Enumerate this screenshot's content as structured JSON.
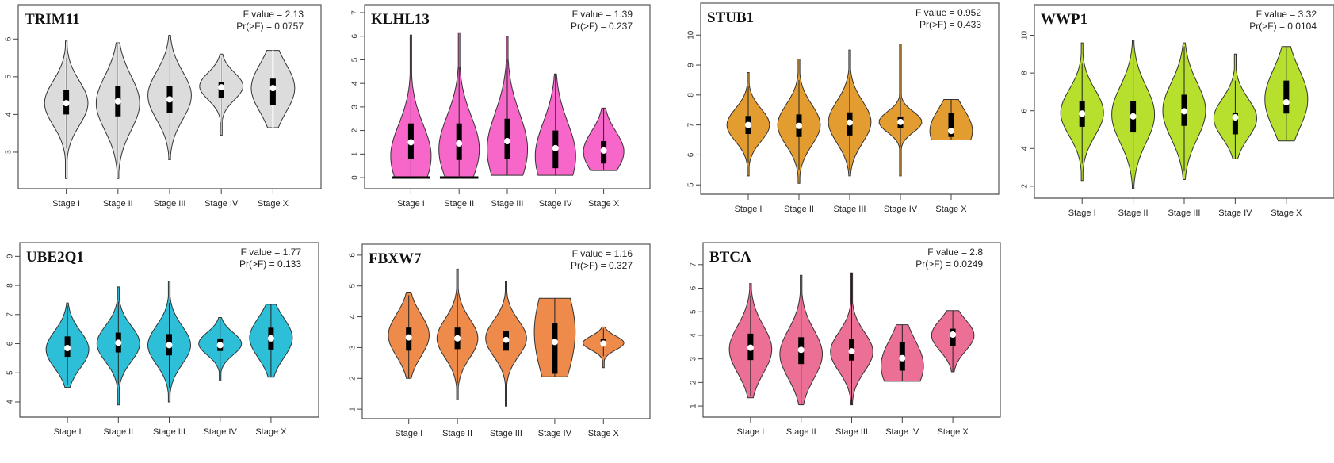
{
  "chart_data": [
    {
      "type": "violin",
      "title": "TRIM11",
      "stat_f": "F value = 2.13",
      "stat_p": "Pr(>F) = 0.0757",
      "color": "#dcdcdc",
      "categories": [
        "Stage I",
        "Stage II",
        "Stage III",
        "Stage IV",
        "Stage X"
      ],
      "ylim": [
        2.2,
        6.7
      ],
      "yticks": [
        3,
        4,
        5,
        6
      ],
      "series": [
        {
          "min": 2.3,
          "max": 5.95,
          "q1": 4.0,
          "median": 4.3,
          "q3": 4.65,
          "mode": 4.3,
          "lo_w": 3.1,
          "hi_w": 5.5
        },
        {
          "min": 2.3,
          "max": 5.9,
          "q1": 3.95,
          "median": 4.35,
          "q3": 4.75,
          "mode": 4.3,
          "lo_w": 2.7,
          "hi_w": 5.9
        },
        {
          "min": 2.8,
          "max": 6.1,
          "q1": 4.05,
          "median": 4.4,
          "q3": 4.75,
          "mode": 4.5,
          "lo_w": 2.9,
          "hi_w": 5.8
        },
        {
          "min": 3.45,
          "max": 5.6,
          "q1": 4.45,
          "median": 4.72,
          "q3": 4.85,
          "mode": 4.75,
          "lo_w": 3.8,
          "hi_w": 5.5
        },
        {
          "min": 3.65,
          "max": 5.7,
          "q1": 4.25,
          "median": 4.7,
          "q3": 4.95,
          "mode": 4.7,
          "lo_w": 3.65,
          "hi_w": 5.7
        }
      ]
    },
    {
      "type": "violin",
      "title": "KLHL13",
      "stat_f": "F value = 1.39",
      "stat_p": "Pr(>F) = 0.237",
      "color": "#f766c9",
      "categories": [
        "Stage I",
        "Stage II",
        "Stage III",
        "Stage IV",
        "Stage X"
      ],
      "ylim": [
        -0.2,
        7.0
      ],
      "yticks": [
        0,
        1,
        2,
        3,
        4,
        5,
        6,
        7
      ],
      "series": [
        {
          "min": 0.0,
          "max": 6.05,
          "q1": 0.8,
          "median": 1.5,
          "q3": 2.3,
          "mode": 0.9,
          "lo_w": 0.0,
          "hi_w": 4.3,
          "zero_bar": true
        },
        {
          "min": 0.0,
          "max": 6.15,
          "q1": 0.75,
          "median": 1.45,
          "q3": 2.3,
          "mode": 1.2,
          "lo_w": 0.0,
          "hi_w": 4.7,
          "zero_bar": true
        },
        {
          "min": 0.1,
          "max": 6.0,
          "q1": 0.8,
          "median": 1.55,
          "q3": 2.5,
          "mode": 1.2,
          "lo_w": 0.1,
          "hi_w": 5.0
        },
        {
          "min": 0.1,
          "max": 4.4,
          "q1": 0.4,
          "median": 1.25,
          "q3": 2.0,
          "mode": 0.9,
          "lo_w": 0.1,
          "hi_w": 4.4
        },
        {
          "min": 0.3,
          "max": 2.95,
          "q1": 0.6,
          "median": 1.15,
          "q3": 1.55,
          "mode": 1.1,
          "lo_w": 0.3,
          "hi_w": 2.95
        }
      ]
    },
    {
      "type": "violin",
      "title": "STUB1",
      "stat_f": "F value = 0.952",
      "stat_p": "Pr(>F) = 0.433",
      "color": "#e39c30",
      "categories": [
        "Stage I",
        "Stage II",
        "Stage III",
        "Stage IV",
        "Stage X"
      ],
      "ylim": [
        4.9,
        10.8
      ],
      "yticks": [
        5,
        6,
        7,
        8,
        9,
        10
      ],
      "series": [
        {
          "min": 5.3,
          "max": 8.75,
          "q1": 6.7,
          "median": 7.0,
          "q3": 7.3,
          "mode": 7.0,
          "lo_w": 5.75,
          "hi_w": 8.3
        },
        {
          "min": 5.05,
          "max": 9.2,
          "q1": 6.6,
          "median": 6.97,
          "q3": 7.35,
          "mode": 7.0,
          "lo_w": 5.5,
          "hi_w": 8.5
        },
        {
          "min": 5.3,
          "max": 9.5,
          "q1": 6.65,
          "median": 7.08,
          "q3": 7.42,
          "mode": 7.1,
          "lo_w": 5.5,
          "hi_w": 8.6
        },
        {
          "min": 5.3,
          "max": 9.7,
          "q1": 6.9,
          "median": 7.1,
          "q3": 7.28,
          "mode": 7.1,
          "lo_w": 6.25,
          "hi_w": 7.9
        },
        {
          "min": 6.5,
          "max": 7.85,
          "q1": 6.6,
          "median": 6.8,
          "q3": 7.4,
          "mode": 6.8,
          "lo_w": 6.5,
          "hi_w": 7.85
        }
      ]
    },
    {
      "type": "violin",
      "title": "WWP1",
      "stat_f": "F value = 3.32",
      "stat_p": "Pr(>F) = 0.0104",
      "color": "#b6e02d",
      "categories": [
        "Stage I",
        "Stage II",
        "Stage III",
        "Stage IV",
        "Stage X"
      ],
      "ylim": [
        1.7,
        11.2
      ],
      "yticks": [
        2,
        4,
        6,
        8,
        10
      ],
      "series": [
        {
          "min": 2.3,
          "max": 9.6,
          "q1": 5.15,
          "median": 5.85,
          "q3": 6.5,
          "mode": 5.9,
          "lo_w": 3.2,
          "hi_w": 8.5
        },
        {
          "min": 1.85,
          "max": 9.75,
          "q1": 4.85,
          "median": 5.7,
          "q3": 6.5,
          "mode": 5.8,
          "lo_w": 2.3,
          "hi_w": 9.2
        },
        {
          "min": 2.35,
          "max": 9.6,
          "q1": 5.2,
          "median": 5.97,
          "q3": 6.85,
          "mode": 6.0,
          "lo_w": 2.8,
          "hi_w": 9.4
        },
        {
          "min": 3.45,
          "max": 9.0,
          "q1": 4.75,
          "median": 5.65,
          "q3": 5.9,
          "mode": 5.6,
          "lo_w": 3.45,
          "hi_w": 7.6
        },
        {
          "min": 4.4,
          "max": 9.4,
          "q1": 5.85,
          "median": 6.45,
          "q3": 7.6,
          "mode": 6.6,
          "lo_w": 4.4,
          "hi_w": 9.4
        }
      ]
    },
    {
      "type": "violin",
      "title": "UBE2Q1",
      "stat_f": "F value = 1.77",
      "stat_p": "Pr(>F) = 0.133",
      "color": "#2ebfd8",
      "categories": [
        "Stage I",
        "Stage II",
        "Stage III",
        "Stage IV",
        "Stage X"
      ],
      "ylim": [
        3.7,
        9.2
      ],
      "yticks": [
        4,
        5,
        6,
        7,
        8,
        9
      ],
      "series": [
        {
          "min": 4.5,
          "max": 7.4,
          "q1": 5.55,
          "median": 5.85,
          "q3": 6.25,
          "mode": 5.8,
          "lo_w": 4.6,
          "hi_w": 7.3
        },
        {
          "min": 3.9,
          "max": 7.95,
          "q1": 5.7,
          "median": 6.03,
          "q3": 6.38,
          "mode": 6.0,
          "lo_w": 4.6,
          "hi_w": 7.45
        },
        {
          "min": 4.0,
          "max": 8.15,
          "q1": 5.6,
          "median": 5.95,
          "q3": 6.33,
          "mode": 5.95,
          "lo_w": 4.5,
          "hi_w": 7.4
        },
        {
          "min": 4.75,
          "max": 6.9,
          "q1": 5.75,
          "median": 5.95,
          "q3": 6.18,
          "mode": 6.0,
          "lo_w": 5.05,
          "hi_w": 6.85
        },
        {
          "min": 4.85,
          "max": 7.35,
          "q1": 5.8,
          "median": 6.18,
          "q3": 6.55,
          "mode": 6.2,
          "lo_w": 4.85,
          "hi_w": 7.35
        }
      ]
    },
    {
      "type": "violin",
      "title": "FBXW7",
      "stat_f": "F value = 1.16",
      "stat_p": "Pr(>F) = 0.327",
      "color": "#ee8a4a",
      "categories": [
        "Stage I",
        "Stage II",
        "Stage III",
        "Stage IV",
        "Stage X"
      ],
      "ylim": [
        0.9,
        6.1
      ],
      "yticks": [
        1,
        2,
        3,
        4,
        5,
        6
      ],
      "series": [
        {
          "min": 2.0,
          "max": 4.8,
          "q1": 2.9,
          "median": 3.33,
          "q3": 3.65,
          "mode": 3.4,
          "lo_w": 2.0,
          "hi_w": 4.7
        },
        {
          "min": 1.3,
          "max": 5.55,
          "q1": 2.95,
          "median": 3.3,
          "q3": 3.65,
          "mode": 3.3,
          "lo_w": 1.85,
          "hi_w": 4.75
        },
        {
          "min": 1.1,
          "max": 5.15,
          "q1": 2.9,
          "median": 3.25,
          "q3": 3.55,
          "mode": 3.3,
          "lo_w": 1.9,
          "hi_w": 4.55
        },
        {
          "min": 2.05,
          "max": 4.6,
          "q1": 2.15,
          "median": 3.18,
          "q3": 3.8,
          "mode": 3.5,
          "lo_w": 2.05,
          "hi_w": 4.6
        },
        {
          "min": 2.35,
          "max": 3.67,
          "q1": 3.05,
          "median": 3.13,
          "q3": 3.28,
          "mode": 3.15,
          "lo_w": 2.72,
          "hi_w": 3.62
        }
      ]
    },
    {
      "type": "violin",
      "title": "BTCA",
      "stat_f": "F value = 2.8",
      "stat_p": "Pr(>F) = 0.0249",
      "color": "#ec6f96",
      "categories": [
        "Stage I",
        "Stage II",
        "Stage III",
        "Stage IV",
        "Stage X"
      ],
      "ylim": [
        0.8,
        7.6
      ],
      "yticks": [
        1,
        2,
        3,
        4,
        5,
        6,
        7
      ],
      "series": [
        {
          "min": 1.35,
          "max": 6.2,
          "q1": 2.95,
          "median": 3.47,
          "q3": 4.07,
          "mode": 3.4,
          "lo_w": 1.4,
          "hi_w": 5.7
        },
        {
          "min": 1.05,
          "max": 6.55,
          "q1": 2.78,
          "median": 3.38,
          "q3": 3.92,
          "mode": 3.2,
          "lo_w": 1.05,
          "hi_w": 5.7
        },
        {
          "min": 1.05,
          "max": 6.65,
          "q1": 2.93,
          "median": 3.32,
          "q3": 3.85,
          "mode": 3.3,
          "lo_w": 1.05,
          "hi_w": 6.65
        },
        {
          "min": 2.05,
          "max": 4.45,
          "q1": 2.5,
          "median": 3.03,
          "q3": 3.72,
          "mode": 2.7,
          "lo_w": 2.05,
          "hi_w": 4.45
        },
        {
          "min": 2.45,
          "max": 5.05,
          "q1": 3.55,
          "median": 4.03,
          "q3": 4.28,
          "mode": 4.0,
          "lo_w": 2.45,
          "hi_w": 5.05
        }
      ]
    }
  ]
}
